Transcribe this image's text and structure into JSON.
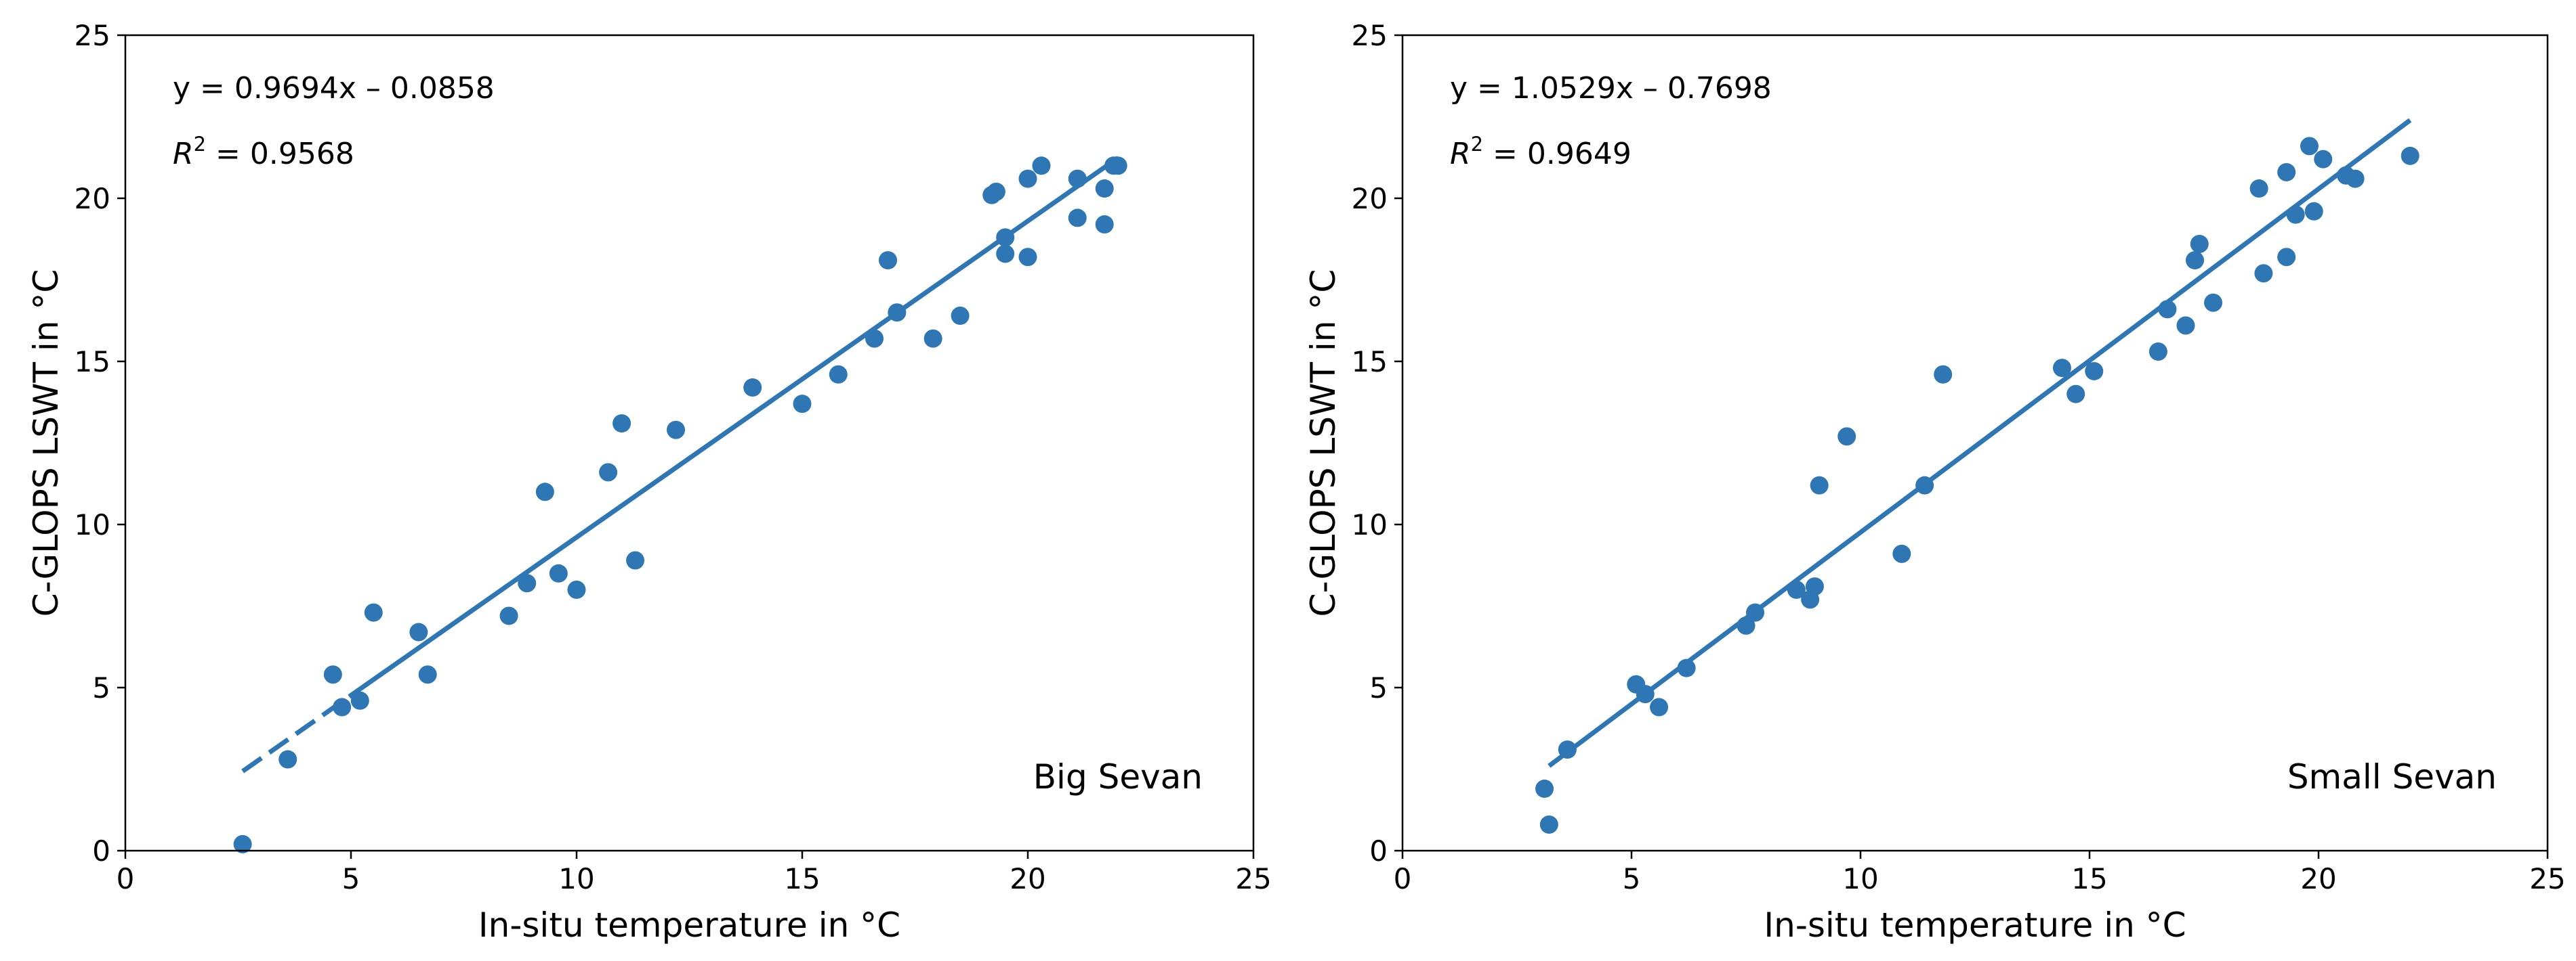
{
  "chart_data": [
    {
      "type": "scatter",
      "xlabel": "In-situ temperature in °C",
      "ylabel": "C-GLOPS LSWT in °C",
      "xlim": [
        0,
        25
      ],
      "ylim": [
        0,
        25
      ],
      "xticks": [
        0,
        5,
        10,
        15,
        20,
        25
      ],
      "yticks": [
        0,
        5,
        10,
        15,
        20,
        25
      ],
      "xtick_labels": [
        "0",
        "5",
        "10",
        "15",
        "20",
        "25"
      ],
      "ytick_labels": [
        "0",
        "5",
        "10",
        "15",
        "20",
        "25"
      ],
      "equation": "y = 0.9694x – 0.0858",
      "r2_label": "R",
      "r2_sup": "2",
      "r2_value": " = 0.9568",
      "annotation": "Big Sevan",
      "color": "#2e77b4",
      "fit": {
        "slope": 0.9694,
        "intercept": -0.0858,
        "dashed_range": [
          2.6,
          5.2
        ],
        "solid_range": [
          5.2,
          22.0
        ]
      },
      "x": [
        2.6,
        3.6,
        4.6,
        4.8,
        5.2,
        5.5,
        6.5,
        6.7,
        8.5,
        8.9,
        9.3,
        9.6,
        10.0,
        10.7,
        11.0,
        11.3,
        12.2,
        13.9,
        15.0,
        15.8,
        16.6,
        16.9,
        17.1,
        17.9,
        18.5,
        19.2,
        19.3,
        19.5,
        19.5,
        20.0,
        20.0,
        20.3,
        21.1,
        21.1,
        21.7,
        21.7,
        21.9,
        22.0
      ],
      "y": [
        0.2,
        2.8,
        5.4,
        4.4,
        4.6,
        7.3,
        6.7,
        5.4,
        7.2,
        8.2,
        11.0,
        8.5,
        8.0,
        11.6,
        13.1,
        8.9,
        12.9,
        14.2,
        13.7,
        14.6,
        15.7,
        18.1,
        16.5,
        15.7,
        16.4,
        20.1,
        20.2,
        18.8,
        18.3,
        20.6,
        18.2,
        21.0,
        20.6,
        19.4,
        20.3,
        19.2,
        21.0,
        21.0
      ]
    },
    {
      "type": "scatter",
      "xlabel": "In-situ temperature in °C",
      "ylabel": "C-GLOPS LSWT in °C",
      "xlim": [
        0,
        25
      ],
      "ylim": [
        0,
        25
      ],
      "xticks": [
        0,
        5,
        10,
        15,
        20,
        25
      ],
      "yticks": [
        0,
        5,
        10,
        15,
        20,
        25
      ],
      "xtick_labels": [
        "0",
        "5",
        "10",
        "15",
        "20",
        "25"
      ],
      "ytick_labels": [
        "0",
        "5",
        "10",
        "15",
        "20",
        "25"
      ],
      "equation": "y = 1.0529x – 0.7698",
      "r2_label": "R",
      "r2_sup": "2",
      "r2_value": " = 0.9649",
      "annotation": "Small Sevan",
      "color": "#2e77b4",
      "fit": {
        "slope": 1.0529,
        "intercept": -0.7698,
        "dashed_range": null,
        "solid_range": [
          3.2,
          22.0
        ]
      },
      "x": [
        3.1,
        3.2,
        3.6,
        5.1,
        5.3,
        5.6,
        6.2,
        7.5,
        7.7,
        8.6,
        8.9,
        9.0,
        9.1,
        9.7,
        10.9,
        11.4,
        11.8,
        14.4,
        14.7,
        15.1,
        16.5,
        16.7,
        17.1,
        17.3,
        17.4,
        17.7,
        18.7,
        18.8,
        19.3,
        19.3,
        19.5,
        19.8,
        19.9,
        20.1,
        20.6,
        20.8,
        22.0
      ],
      "y": [
        1.9,
        0.8,
        3.1,
        5.1,
        4.8,
        4.4,
        5.6,
        6.9,
        7.3,
        8.0,
        7.7,
        8.1,
        11.2,
        12.7,
        9.1,
        11.2,
        14.6,
        14.8,
        14.0,
        14.7,
        15.3,
        16.6,
        16.1,
        18.1,
        18.6,
        16.8,
        20.3,
        17.7,
        20.8,
        18.2,
        19.5,
        21.6,
        19.6,
        21.2,
        20.7,
        20.6,
        21.3
      ]
    }
  ]
}
